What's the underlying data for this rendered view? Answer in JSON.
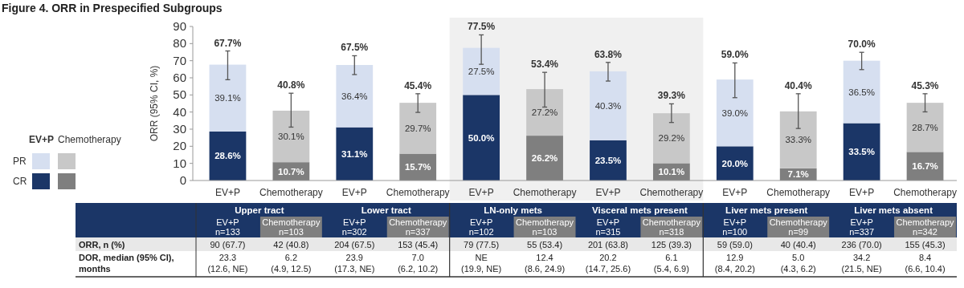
{
  "chart_data": {
    "type": "bar",
    "stacked": true,
    "title": "Figure 4. ORR in Prespecified Subgroups",
    "ylabel": "ORR (95% CI, %)",
    "categories": [
      "EV+P",
      "Chemotherapy",
      "EV+P",
      "Chemotherapy",
      "EV+P",
      "Chemotherapy",
      "EV+P",
      "Chemotherapy",
      "EV+P",
      "Chemotherapy",
      "EV+P",
      "Chemotherapy"
    ],
    "series": [
      {
        "name": "CR",
        "colors": [
          "#1b3667",
          "#7f7f7f",
          "#1b3667",
          "#7f7f7f",
          "#1b3667",
          "#7f7f7f",
          "#1b3667",
          "#7f7f7f",
          "#1b3667",
          "#7f7f7f",
          "#1b3667",
          "#7f7f7f"
        ],
        "values": [
          28.6,
          10.7,
          31.1,
          15.7,
          50.0,
          26.2,
          23.5,
          10.1,
          20.0,
          7.1,
          33.5,
          16.7
        ],
        "value_labels": [
          "28.6%",
          "10.7%",
          "31.1%",
          "15.7%",
          "50.0%",
          "26.2%",
          "23.5%",
          "10.1%",
          "20.0%",
          "7.1%",
          "33.5%",
          "16.7%"
        ]
      },
      {
        "name": "PR",
        "colors": [
          "#d6dff0",
          "#c8c8c8",
          "#d6dff0",
          "#c8c8c8",
          "#d6dff0",
          "#c8c8c8",
          "#d6dff0",
          "#c8c8c8",
          "#d6dff0",
          "#c8c8c8",
          "#d6dff0",
          "#c8c8c8"
        ],
        "values": [
          39.1,
          30.1,
          36.4,
          29.7,
          27.5,
          27.2,
          40.3,
          29.2,
          39.0,
          33.3,
          36.5,
          28.7
        ],
        "value_labels": [
          "39.1%",
          "30.1%",
          "36.4%",
          "29.7%",
          "27.5%",
          "27.2%",
          "40.3%",
          "29.2%",
          "39.0%",
          "33.3%",
          "36.5%",
          "28.7%"
        ],
        "errors": [
          [
            58.9,
            75.7
          ],
          [
            31.2,
            51.0
          ],
          [
            61.9,
            72.9
          ],
          [
            39.8,
            50.7
          ],
          [
            67.9,
            85.1
          ],
          [
            42.9,
            63.2
          ],
          [
            58.1,
            69.0
          ],
          [
            33.9,
            44.8
          ],
          [
            48.4,
            68.7
          ],
          [
            30.4,
            50.7
          ],
          [
            64.8,
            74.9
          ],
          [
            40.1,
            50.7
          ]
        ]
      }
    ],
    "totals": [
      "67.7%",
      "40.8%",
      "67.5%",
      "45.4%",
      "77.5%",
      "53.4%",
      "63.8%",
      "39.3%",
      "59.0%",
      "40.4%",
      "70.0%",
      "45.3%"
    ],
    "ylim": [
      0,
      90
    ],
    "yticks": [
      0,
      10,
      20,
      30,
      40,
      50,
      60,
      70,
      80,
      90
    ],
    "grid": false,
    "legend": "left",
    "annotations": [
      "Upper tract",
      "Lower tract",
      "LN-only mets",
      "Visceral mets present",
      "Liver mets present",
      "Liver mets absent",
      "n=133",
      "n=103",
      "n=302",
      "n=337",
      "n=102",
      "n=103",
      "n=315",
      "n=318",
      "n=100",
      "n=99",
      "n=337",
      "n=342",
      "ORR, n (%)",
      "DOR, median (95% CI),\nmonths",
      "90 (67.7)",
      "42 (40.8)",
      "204 (67.5)",
      "153 (45.4)",
      "79 (77.5)",
      "55 (53.4)",
      "201 (63.8)",
      "125 (39.3)",
      "59 (59.0)",
      "40 (40.4)",
      "236 (70.0)",
      "155 (45.3)",
      "23.3\n(12.6, NE)",
      "6.2\n(4.9, 12.5)",
      "23.9\n(17.3, NE)",
      "7.0\n(6.2, 10.2)",
      "NE\n(19.9, NE)",
      "12.4\n(8.6, 24.9)",
      "20.2\n(14.7, 25.6)",
      "6.1\n(5.4, 6.9)",
      "12.9\n(8.4, 20.2)",
      "5.0\n(4.3, 6.2)",
      "34.2\n(21.5, NE)",
      "8.4\n(6.6, 10.4)"
    ]
  }
}
